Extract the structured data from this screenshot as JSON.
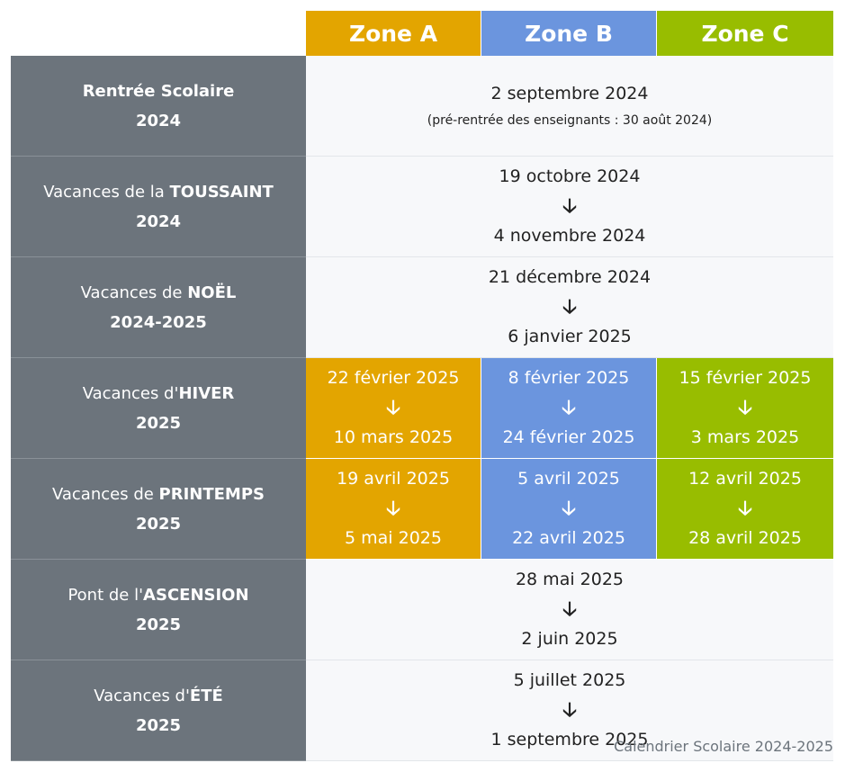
{
  "header": {
    "zone_a": "Zone A",
    "zone_b": "Zone B",
    "zone_c": "Zone C",
    "colors": {
      "zone_a": "#e3a500",
      "zone_b": "#6b95de",
      "zone_c": "#98bd00",
      "label_bg": "#6c747c"
    }
  },
  "arrow": "🡣",
  "rows": {
    "rentree": {
      "label": "Rentrée Scolaire",
      "year": "2024",
      "date": "2 septembre 2024",
      "note": "(pré-rentrée des enseignants : 30 août 2024)"
    },
    "toussaint": {
      "label_prefix": "Vacances de la ",
      "label_key": "TOUSSAINT",
      "year": "2024",
      "start": "19 octobre 2024",
      "end": "4 novembre 2024"
    },
    "noel": {
      "label_prefix": "Vacances de ",
      "label_key": "NOËL",
      "year": "2024-2025",
      "start": "21 décembre 2024",
      "end": "6 janvier 2025"
    },
    "hiver": {
      "label_prefix": "Vacances d'",
      "label_key": "HIVER",
      "year": "2025",
      "zone_a": {
        "start": "22 février 2025",
        "end": "10 mars 2025"
      },
      "zone_b": {
        "start": "8 février 2025",
        "end": "24 février 2025"
      },
      "zone_c": {
        "start": "15 février 2025",
        "end": "3 mars 2025"
      }
    },
    "printemps": {
      "label_prefix": "Vacances de ",
      "label_key": "PRINTEMPS",
      "year": "2025",
      "zone_a": {
        "start": "19 avril 2025",
        "end": "5 mai 2025"
      },
      "zone_b": {
        "start": "5 avril 2025",
        "end": "22 avril 2025"
      },
      "zone_c": {
        "start": "12 avril 2025",
        "end": "28 avril 2025"
      }
    },
    "ascension": {
      "label_prefix": "Pont de l'",
      "label_key": "ASCENSION",
      "year": "2025",
      "start": "28 mai 2025",
      "end": "2 juin 2025"
    },
    "ete": {
      "label_prefix": "Vacances d'",
      "label_key": "ÉTÉ",
      "year": "2025",
      "start": "5 juillet 2025",
      "end": "1 septembre 2025"
    }
  },
  "caption": "Calendrier Scolaire 2024-2025"
}
